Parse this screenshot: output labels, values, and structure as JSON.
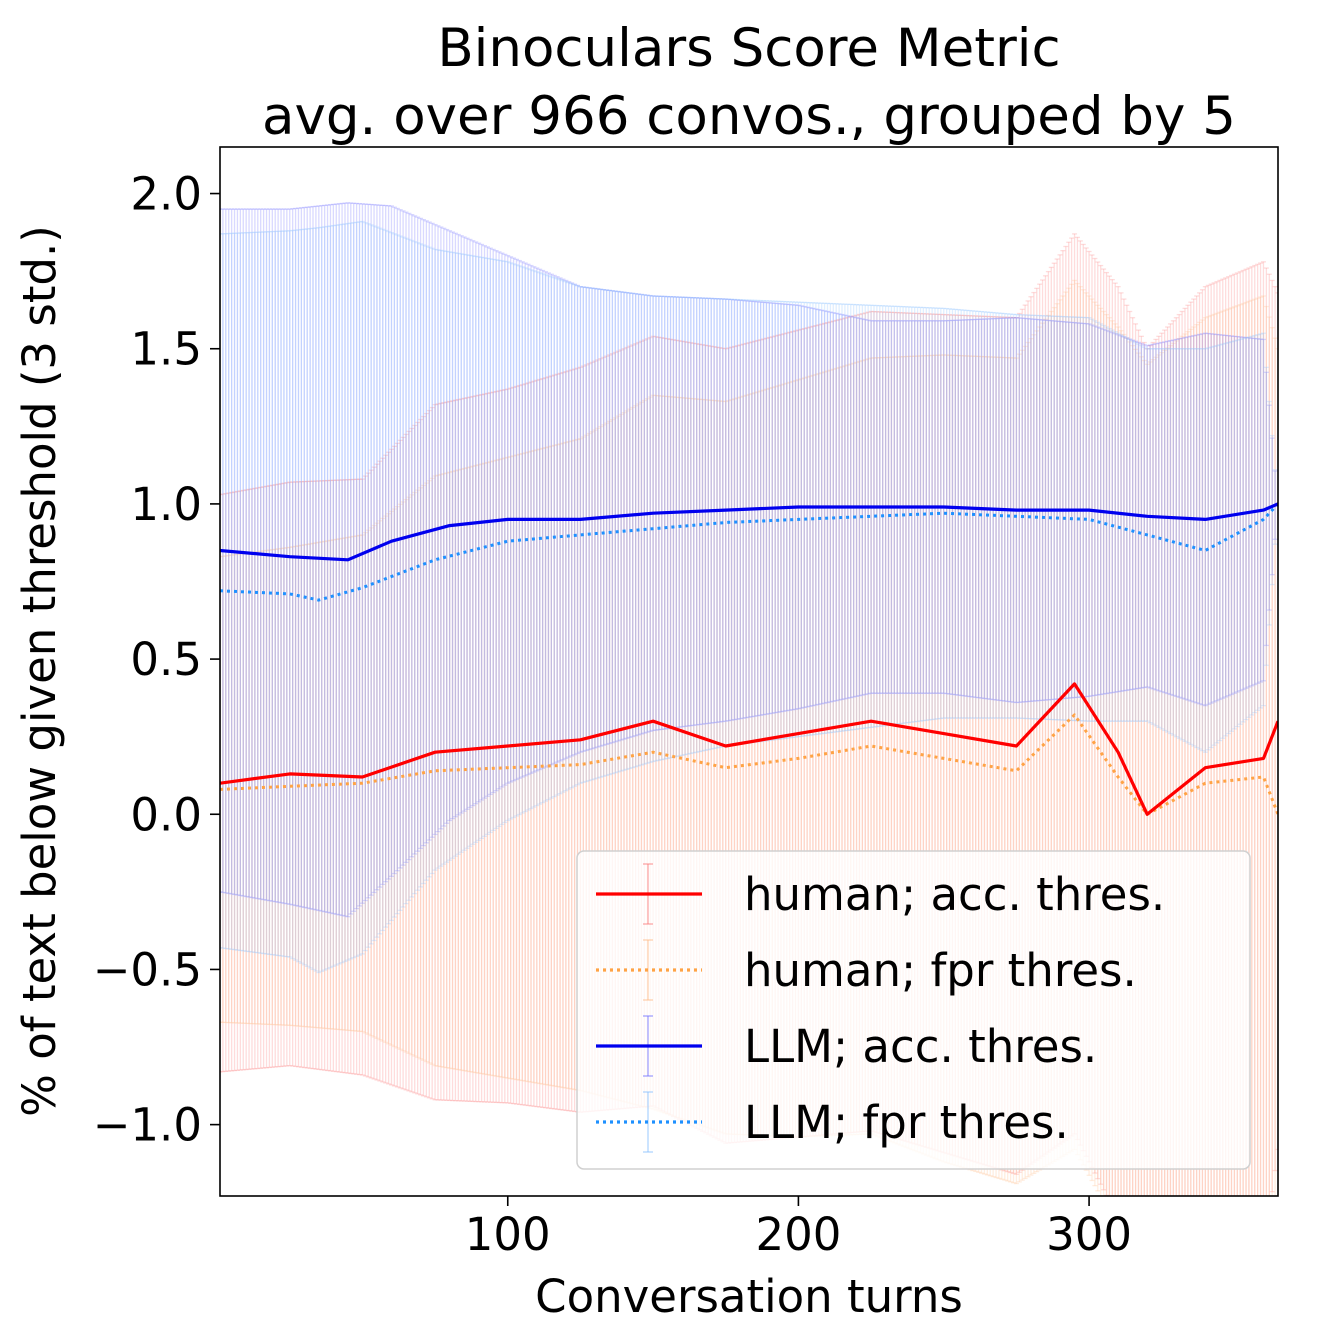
{
  "chart_data": {
    "type": "line",
    "title": "Binoculars Score Metric",
    "subtitle": "avg. over 966 convos., grouped by 5",
    "xlabel": "Conversation turns",
    "ylabel": "% of text below given threshold (3 std.)",
    "xlim": [
      1,
      365
    ],
    "ylim": [
      -1.23,
      2.15
    ],
    "xticks": [
      100,
      200,
      300
    ],
    "xtick_labels": [
      "100",
      "200",
      "300"
    ],
    "yticks": [
      -1.0,
      -0.5,
      0.0,
      0.5,
      1.0,
      1.5,
      2.0
    ],
    "ytick_labels": [
      "−1.0",
      "−0.5",
      "0.0",
      "0.5",
      "1.0",
      "1.5",
      "2.0"
    ],
    "grid": false,
    "legend_position": "lower right",
    "error_bars": "3 std.",
    "series": [
      {
        "name": "human; acc. thres.",
        "color": "#ff0000",
        "style": "solid",
        "err_color": "#fa8080",
        "x": [
          1,
          25,
          50,
          75,
          100,
          125,
          150,
          175,
          200,
          225,
          250,
          275,
          295,
          310,
          320,
          340,
          360,
          365
        ],
        "y": [
          0.1,
          0.13,
          0.12,
          0.2,
          0.22,
          0.24,
          0.3,
          0.22,
          0.26,
          0.3,
          0.26,
          0.22,
          0.42,
          0.2,
          0.0,
          0.15,
          0.18,
          0.3
        ],
        "err": [
          0.93,
          0.94,
          0.96,
          1.12,
          1.15,
          1.2,
          1.24,
          1.28,
          1.3,
          1.32,
          1.35,
          1.38,
          1.45,
          1.5,
          1.5,
          1.55,
          1.6,
          1.38
        ]
      },
      {
        "name": "human; fpr thres.",
        "color": "#ffa345",
        "style": "dotted",
        "err_color": "#ffbe8c",
        "x": [
          1,
          25,
          50,
          75,
          100,
          125,
          150,
          175,
          200,
          225,
          250,
          275,
          295,
          310,
          320,
          340,
          360,
          365
        ],
        "y": [
          0.08,
          0.09,
          0.1,
          0.14,
          0.15,
          0.16,
          0.2,
          0.15,
          0.18,
          0.22,
          0.18,
          0.14,
          0.32,
          0.12,
          0.0,
          0.1,
          0.12,
          0.0
        ],
        "err": [
          0.75,
          0.77,
          0.8,
          0.95,
          1.0,
          1.05,
          1.15,
          1.18,
          1.22,
          1.25,
          1.3,
          1.33,
          1.4,
          1.45,
          1.45,
          1.5,
          1.55,
          1.5
        ]
      },
      {
        "name": "LLM; acc. thres.",
        "color": "#0000ee",
        "style": "solid",
        "err_color": "#7878ff",
        "x": [
          1,
          25,
          45,
          60,
          80,
          100,
          125,
          150,
          175,
          200,
          225,
          250,
          275,
          300,
          320,
          340,
          360,
          365
        ],
        "y": [
          0.85,
          0.83,
          0.82,
          0.88,
          0.93,
          0.95,
          0.95,
          0.97,
          0.98,
          0.99,
          0.99,
          0.99,
          0.98,
          0.98,
          0.96,
          0.95,
          0.98,
          1.0
        ],
        "err": [
          1.1,
          1.12,
          1.15,
          1.08,
          0.95,
          0.85,
          0.75,
          0.7,
          0.68,
          0.65,
          0.6,
          0.6,
          0.62,
          0.6,
          0.55,
          0.6,
          0.55,
          0.0
        ]
      },
      {
        "name": "LLM; fpr thres.",
        "color": "#1e90ff",
        "style": "dotted",
        "err_color": "#8cc3ff",
        "x": [
          1,
          25,
          35,
          50,
          75,
          100,
          125,
          150,
          175,
          200,
          225,
          250,
          275,
          300,
          320,
          340,
          360,
          365
        ],
        "y": [
          0.72,
          0.71,
          0.69,
          0.73,
          0.82,
          0.88,
          0.9,
          0.92,
          0.94,
          0.95,
          0.96,
          0.97,
          0.96,
          0.95,
          0.9,
          0.85,
          0.95,
          1.0
        ],
        "err": [
          1.15,
          1.17,
          1.2,
          1.18,
          1.0,
          0.9,
          0.8,
          0.75,
          0.72,
          0.7,
          0.68,
          0.66,
          0.65,
          0.65,
          0.6,
          0.65,
          0.6,
          0.0
        ]
      }
    ]
  }
}
